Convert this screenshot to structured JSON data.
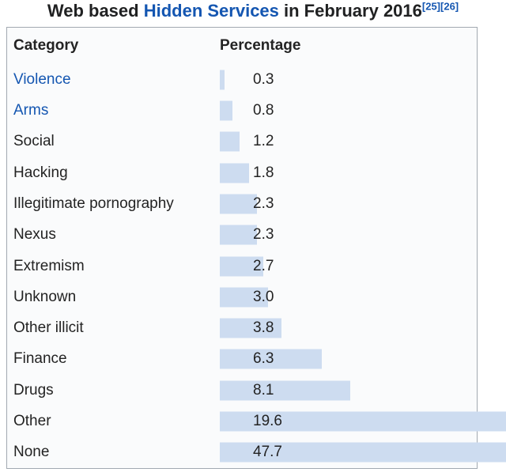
{
  "title": {
    "text_before_link": "Web based ",
    "link_text": "Hidden Services",
    "text_after_link": " in February 2016",
    "reference_1": "[25]",
    "reference_2": "[26]"
  },
  "table": {
    "header_category": "Category",
    "header_percentage": "Percentage",
    "rows": [
      {
        "label": "Violence",
        "value": 0.3,
        "value_text": "0.3",
        "is_link": true
      },
      {
        "label": "Arms",
        "value": 0.8,
        "value_text": "0.8",
        "is_link": true
      },
      {
        "label": "Social",
        "value": 1.2,
        "value_text": "1.2",
        "is_link": false
      },
      {
        "label": "Hacking",
        "value": 1.8,
        "value_text": "1.8",
        "is_link": false
      },
      {
        "label": "Illegitimate pornography",
        "value": 2.3,
        "value_text": "2.3",
        "is_link": false
      },
      {
        "label": "Nexus",
        "value": 2.3,
        "value_text": "2.3",
        "is_link": false
      },
      {
        "label": "Extremism",
        "value": 2.7,
        "value_text": "2.7",
        "is_link": false
      },
      {
        "label": "Unknown",
        "value": 3.0,
        "value_text": "3.0",
        "is_link": false
      },
      {
        "label": "Other illicit",
        "value": 3.8,
        "value_text": "3.8",
        "is_link": false
      },
      {
        "label": "Finance",
        "value": 6.3,
        "value_text": "6.3",
        "is_link": false
      },
      {
        "label": "Drugs",
        "value": 8.1,
        "value_text": "8.1",
        "is_link": false
      },
      {
        "label": "Other",
        "value": 19.6,
        "value_text": "19.6",
        "is_link": false
      },
      {
        "label": "None",
        "value": 47.7,
        "value_text": "47.7",
        "is_link": false
      }
    ]
  },
  "chart_data": {
    "type": "bar",
    "orientation": "horizontal",
    "title": "Web based Hidden Services in February 2016",
    "categories": [
      "Violence",
      "Arms",
      "Social",
      "Hacking",
      "Illegitimate pornography",
      "Nexus",
      "Extremism",
      "Unknown",
      "Other illicit",
      "Finance",
      "Drugs",
      "Other",
      "None"
    ],
    "values": [
      0.3,
      0.8,
      1.2,
      1.8,
      2.3,
      2.3,
      2.7,
      3.0,
      3.8,
      6.3,
      8.1,
      19.6,
      47.7
    ],
    "xlabel": "Percentage",
    "ylabel": "Category",
    "unit": "%",
    "legend": false,
    "grid": false,
    "notes": "Bars for Other (19.6) and None (47.7) overflow past the table right border and are clipped by the image edge"
  },
  "colors": {
    "bar": "#cddcf0",
    "link": "#1456b1",
    "text": "#232323",
    "border": "#a2a9b1",
    "table_background": "#fafbfc"
  }
}
